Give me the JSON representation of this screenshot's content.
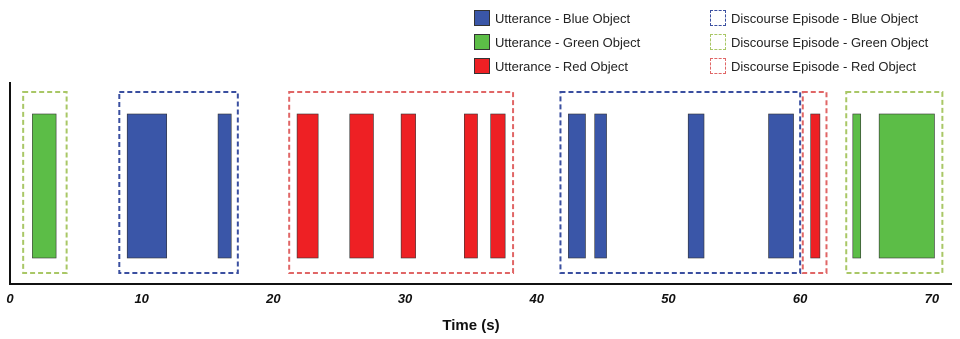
{
  "chart_data": {
    "type": "timeline",
    "xlabel": "Time (s)",
    "xlim": [
      0,
      71
    ],
    "x_ticks": [
      0,
      10,
      20,
      30,
      40,
      50,
      60,
      70
    ],
    "grid": false,
    "legend_placement": "top-right",
    "colors": {
      "blue": "#3a56a8",
      "green": "#5cbd47",
      "red": "#ee2024",
      "blue_episode": "#3a4fa0",
      "green_episode": "#a9c766",
      "red_episode": "#e06666"
    },
    "legend": [
      {
        "label": "Utterance - Blue Object",
        "style": "solid",
        "color_key": "blue"
      },
      {
        "label": "Utterance - Green Object",
        "style": "solid",
        "color_key": "green"
      },
      {
        "label": "Utterance - Red Object",
        "style": "solid",
        "color_key": "red"
      },
      {
        "label": "Discourse Episode - Blue Object",
        "style": "dashed",
        "color_key": "blue_episode"
      },
      {
        "label": "Discourse Episode - Green Object",
        "style": "dashed",
        "color_key": "green_episode"
      },
      {
        "label": "Discourse Episode - Red Object",
        "style": "dashed",
        "color_key": "red_episode"
      }
    ],
    "utterances": [
      {
        "object": "green",
        "start": 1.7,
        "end": 3.5
      },
      {
        "object": "blue",
        "start": 8.9,
        "end": 11.9
      },
      {
        "object": "blue",
        "start": 15.8,
        "end": 16.8
      },
      {
        "object": "red",
        "start": 21.8,
        "end": 23.4
      },
      {
        "object": "red",
        "start": 25.8,
        "end": 27.6
      },
      {
        "object": "red",
        "start": 29.7,
        "end": 30.8
      },
      {
        "object": "red",
        "start": 34.5,
        "end": 35.5
      },
      {
        "object": "red",
        "start": 36.5,
        "end": 37.6
      },
      {
        "object": "blue",
        "start": 42.4,
        "end": 43.7
      },
      {
        "object": "blue",
        "start": 44.4,
        "end": 45.3
      },
      {
        "object": "blue",
        "start": 51.5,
        "end": 52.7
      },
      {
        "object": "blue",
        "start": 57.6,
        "end": 59.5
      },
      {
        "object": "red",
        "start": 60.8,
        "end": 61.5
      },
      {
        "object": "green",
        "start": 64.0,
        "end": 64.6
      },
      {
        "object": "green",
        "start": 66.0,
        "end": 70.2
      }
    ],
    "episodes": [
      {
        "object": "green",
        "start": 1.0,
        "end": 4.3
      },
      {
        "object": "blue",
        "start": 8.3,
        "end": 17.3
      },
      {
        "object": "red",
        "start": 21.2,
        "end": 38.2
      },
      {
        "object": "blue",
        "start": 41.8,
        "end": 60.0
      },
      {
        "object": "red",
        "start": 60.2,
        "end": 62.0
      },
      {
        "object": "green",
        "start": 63.5,
        "end": 70.8
      }
    ]
  }
}
